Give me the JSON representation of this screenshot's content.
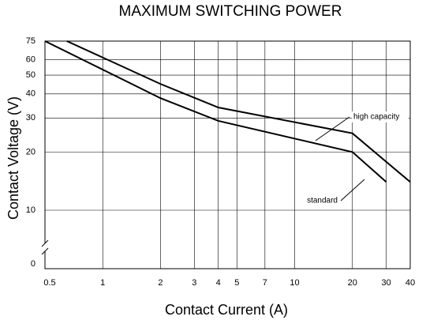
{
  "chart_data": {
    "type": "line",
    "title": "MAXIMUM SWITCHING POWER",
    "x_label": "Contact Current (A)",
    "y_label": "Contact Voltage (V)",
    "log_x": true,
    "log_y": true,
    "axis_break": true,
    "grid": true,
    "xlim": [
      0.5,
      40
    ],
    "xticks": [
      0.5,
      1,
      2,
      3,
      4,
      5,
      7,
      10,
      20,
      30,
      40
    ],
    "ylim": [
      0,
      75
    ],
    "yticks": [
      0,
      10,
      20,
      30,
      40,
      50,
      60,
      75
    ],
    "series": [
      {
        "name": "high capacity",
        "color": "#000000",
        "x": [
          0.65,
          2,
          4,
          20,
          40
        ],
        "values": [
          75,
          45,
          34,
          25,
          14
        ]
      },
      {
        "name": "standard",
        "color": "#000000",
        "x": [
          0.5,
          2,
          4,
          20,
          30
        ],
        "values": [
          75,
          38,
          29,
          20,
          14
        ]
      }
    ]
  }
}
